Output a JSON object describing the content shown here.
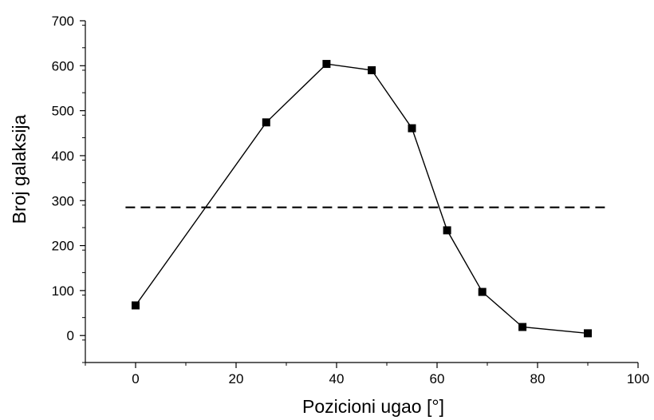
{
  "chart_data": {
    "type": "line",
    "title": "",
    "xlabel": "Pozicioni ugao [°]",
    "ylabel": "Broj galaksija",
    "xlim": [
      -10,
      100
    ],
    "ylim": [
      -60,
      700
    ],
    "x_ticks": [
      0,
      20,
      40,
      60,
      80,
      100
    ],
    "y_ticks": [
      0,
      100,
      200,
      300,
      400,
      500,
      600,
      700
    ],
    "x_tick_labels": [
      "0",
      "20",
      "40",
      "60",
      "80",
      "100"
    ],
    "y_tick_labels": [
      "0",
      "100",
      "200",
      "300",
      "400",
      "500",
      "600",
      "700"
    ],
    "grid": false,
    "legend": "none",
    "series": [
      {
        "style": "solid line with square markers",
        "color": "#000000",
        "x": [
          0,
          26,
          38,
          47,
          55,
          62,
          69,
          77,
          90
        ],
        "y": [
          67,
          474,
          604,
          590,
          461,
          234,
          97,
          19,
          5
        ]
      }
    ],
    "reference_lines": [
      {
        "style": "dashed",
        "color": "#000000",
        "y": 285,
        "x_start": -2,
        "x_end": 94
      }
    ]
  }
}
